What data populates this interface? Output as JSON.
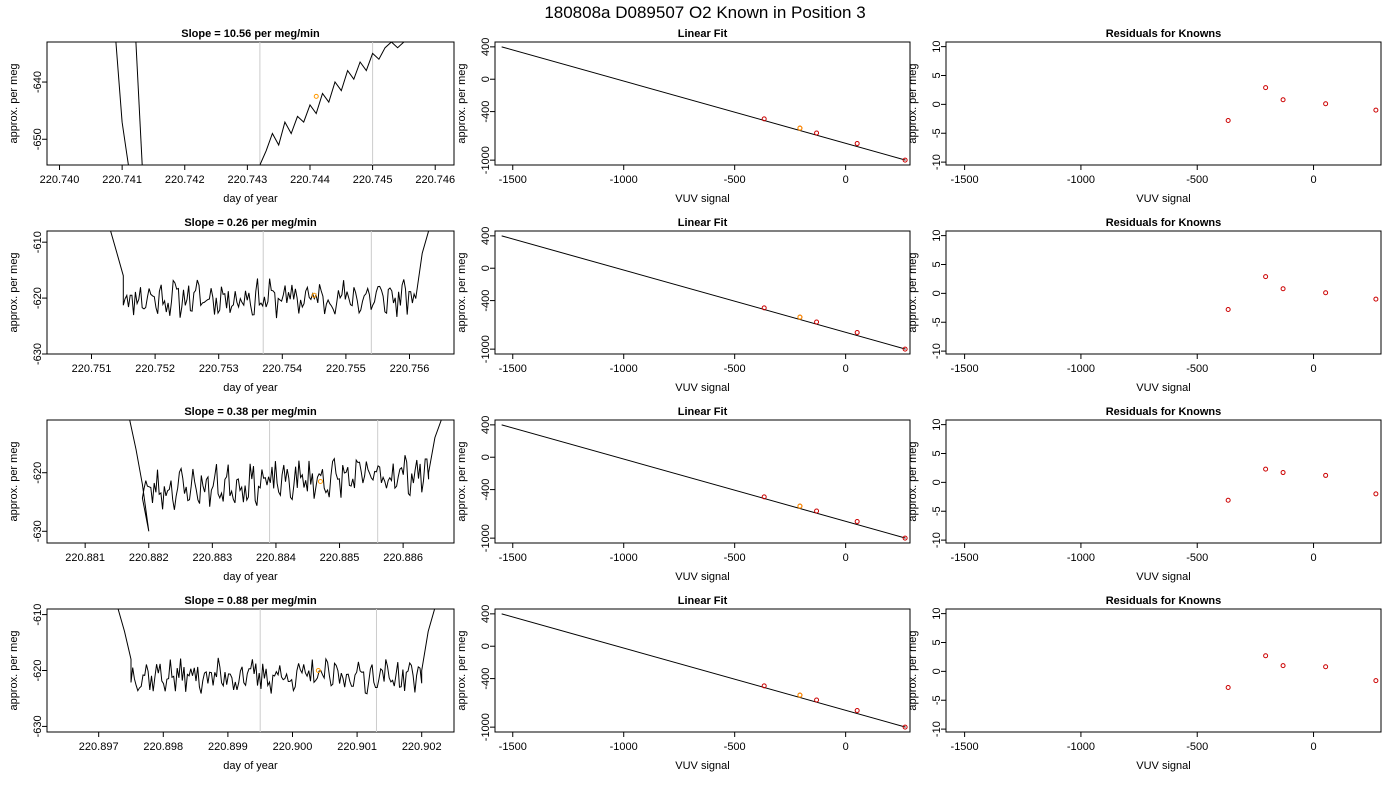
{
  "figure": {
    "title": "180808a     D089507   O2 Known in Position  3"
  },
  "colors": {
    "trace": "#000000",
    "marker_orange": "#ff9900",
    "marker_red": "#cc0000",
    "vline": "#cccccc",
    "fitline": "#000000"
  },
  "chart_data": [
    {
      "type": "line",
      "panel": "trace",
      "row": 0,
      "title": "Slope =  10.56  per meg/min",
      "xlabel": "day of year",
      "ylabel": "approx. per meg",
      "xlim": [
        220.7398,
        220.7463
      ],
      "ylim": [
        -654.5,
        -633
      ],
      "xticks": [
        "220.740",
        "220.741",
        "220.742",
        "220.743",
        "220.744",
        "220.745",
        "220.746"
      ],
      "yticks": [
        "-640",
        "-650"
      ],
      "vlines": [
        220.7432,
        220.745
      ],
      "marker": {
        "x": 220.7441,
        "y": -642.5
      },
      "trace": {
        "segments": [
          [
            [
              220.7409,
              -633
            ],
            [
              220.741,
              -647
            ],
            [
              220.7411,
              -654.5
            ]
          ],
          [
            [
              220.74122,
              -633
            ],
            [
              220.74132,
              -654.5
            ]
          ],
          [
            [
              220.7432,
              -654.5
            ],
            [
              220.7433,
              -652
            ],
            [
              220.7434,
              -649
            ],
            [
              220.7435,
              -651
            ],
            [
              220.7436,
              -647
            ],
            [
              220.7437,
              -649
            ],
            [
              220.7438,
              -646
            ],
            [
              220.7439,
              -647
            ],
            [
              220.744,
              -644
            ],
            [
              220.7441,
              -645.5
            ],
            [
              220.7442,
              -642
            ],
            [
              220.7443,
              -643.5
            ],
            [
              220.7444,
              -640
            ],
            [
              220.7445,
              -641.5
            ],
            [
              220.7446,
              -638
            ],
            [
              220.7447,
              -639.5
            ],
            [
              220.7448,
              -636.5
            ],
            [
              220.7449,
              -638
            ],
            [
              220.745,
              -635
            ],
            [
              220.7451,
              -636
            ],
            [
              220.7452,
              -634
            ],
            [
              220.7453,
              -633
            ]
          ],
          [
            [
              220.7453,
              -633
            ],
            [
              220.7454,
              -634
            ],
            [
              220.7455,
              -633
            ]
          ]
        ]
      }
    },
    {
      "type": "line",
      "panel": "trace",
      "row": 1,
      "title": "Slope =  0.26  per meg/min",
      "xlabel": "day of year",
      "ylabel": "approx. per meg",
      "xlim": [
        220.7503,
        220.7567
      ],
      "ylim": [
        -630,
        -608
      ],
      "xticks": [
        "220.751",
        "220.752",
        "220.753",
        "220.754",
        "220.755",
        "220.756"
      ],
      "yticks": [
        "-610",
        "-620",
        "-630"
      ],
      "vlines": [
        220.7537,
        220.7554
      ],
      "marker": {
        "x": 220.7545,
        "y": -619.5
      },
      "trace": {
        "start": 220.7515,
        "end": 220.7561,
        "baseline": -620,
        "amplitude": 2.5,
        "seed": 11,
        "edge_left": [
          [
            220.7513,
            -608
          ],
          [
            220.7514,
            -612
          ],
          [
            220.7515,
            -616
          ]
        ],
        "edge_right": [
          [
            220.7561,
            -620
          ],
          [
            220.7562,
            -612
          ],
          [
            220.7563,
            -608
          ]
        ]
      }
    },
    {
      "type": "line",
      "panel": "trace",
      "row": 2,
      "title": "Slope =  0.38  per meg/min",
      "xlabel": "day of year",
      "ylabel": "approx. per meg",
      "xlim": [
        220.8804,
        220.8868
      ],
      "ylim": [
        -632,
        -611
      ],
      "xticks": [
        "220.881",
        "220.882",
        "220.883",
        "220.884",
        "220.885",
        "220.886"
      ],
      "yticks": [
        "-620",
        "-630"
      ],
      "vlines": [
        220.8839,
        220.8856
      ],
      "marker": {
        "x": 220.8847,
        "y": -621.5
      },
      "trace": {
        "start": 220.8819,
        "end": 220.8864,
        "baseline": -623,
        "amplitude": 2.6,
        "trend": 3.0,
        "seed": 23,
        "edge_left": [
          [
            220.8817,
            -611
          ],
          [
            220.8818,
            -616
          ],
          [
            220.8819,
            -622
          ],
          [
            220.882,
            -630
          ]
        ],
        "edge_right": [
          [
            220.8864,
            -620
          ],
          [
            220.8865,
            -614
          ],
          [
            220.8866,
            -611
          ]
        ]
      }
    },
    {
      "type": "line",
      "panel": "trace",
      "row": 3,
      "title": "Slope =  0.88  per meg/min",
      "xlabel": "day of year",
      "ylabel": "approx. per meg",
      "xlim": [
        220.8962,
        220.9025
      ],
      "ylim": [
        -631,
        -609
      ],
      "xticks": [
        "220.897",
        "220.898",
        "220.899",
        "220.900",
        "220.901",
        "220.902"
      ],
      "yticks": [
        "-610",
        "-620",
        "-630"
      ],
      "vlines": [
        220.8995,
        220.9013
      ],
      "marker": {
        "x": 220.9004,
        "y": -620
      },
      "trace": {
        "start": 220.8975,
        "end": 220.902,
        "baseline": -621,
        "amplitude": 2.3,
        "seed": 37,
        "edge_left": [
          [
            220.8973,
            -609
          ],
          [
            220.8974,
            -613
          ],
          [
            220.8975,
            -618
          ]
        ],
        "edge_right": [
          [
            220.902,
            -620
          ],
          [
            220.9021,
            -613
          ],
          [
            220.9022,
            -609
          ]
        ]
      }
    },
    {
      "type": "scatter",
      "panel": "fit",
      "rows": [
        0,
        1,
        2,
        3
      ],
      "title": "Linear Fit",
      "xlabel": "VUV signal",
      "ylabel": "approx. per meg",
      "xlim": [
        -1580,
        290
      ],
      "ylim": [
        -1060,
        460
      ],
      "xticks": [
        "-1500",
        "-1000",
        "-500",
        "0"
      ],
      "yticks": [
        "400",
        "0",
        "-400",
        "-1000"
      ],
      "line": [
        [
          -1550,
          400
        ],
        [
          270,
          -1000
        ]
      ],
      "points": [
        [
          -367,
          -490
        ],
        [
          -206,
          -605
        ],
        [
          -131,
          -665
        ],
        [
          52,
          -795
        ],
        [
          268,
          -1000
        ]
      ],
      "orange_point": [
        -206,
        -605
      ]
    },
    {
      "type": "scatter",
      "panel": "residual",
      "rows": [
        0,
        1,
        2,
        3
      ],
      "title": "Residuals for Knowns",
      "xlabel": "VUV signal",
      "ylabel": "approx. per meg",
      "xlim": [
        -1580,
        290
      ],
      "ylim": [
        -10.5,
        10.8
      ],
      "xticks": [
        "-1500",
        "-1000",
        "-500",
        "0"
      ],
      "yticks": [
        "10",
        "5",
        "0",
        "-5",
        "-10"
      ],
      "x": [
        -367,
        -206,
        -131,
        52,
        268
      ],
      "series": [
        {
          "row": 0,
          "values": [
            -2.8,
            2.9,
            0.8,
            0.1,
            -1.0
          ]
        },
        {
          "row": 1,
          "values": [
            -2.8,
            2.9,
            0.8,
            0.1,
            -1.0
          ]
        },
        {
          "row": 2,
          "values": [
            -3.1,
            2.3,
            1.7,
            1.2,
            -2.0
          ]
        },
        {
          "row": 3,
          "values": [
            -2.8,
            2.7,
            1.0,
            0.8,
            -1.6
          ]
        }
      ]
    }
  ]
}
